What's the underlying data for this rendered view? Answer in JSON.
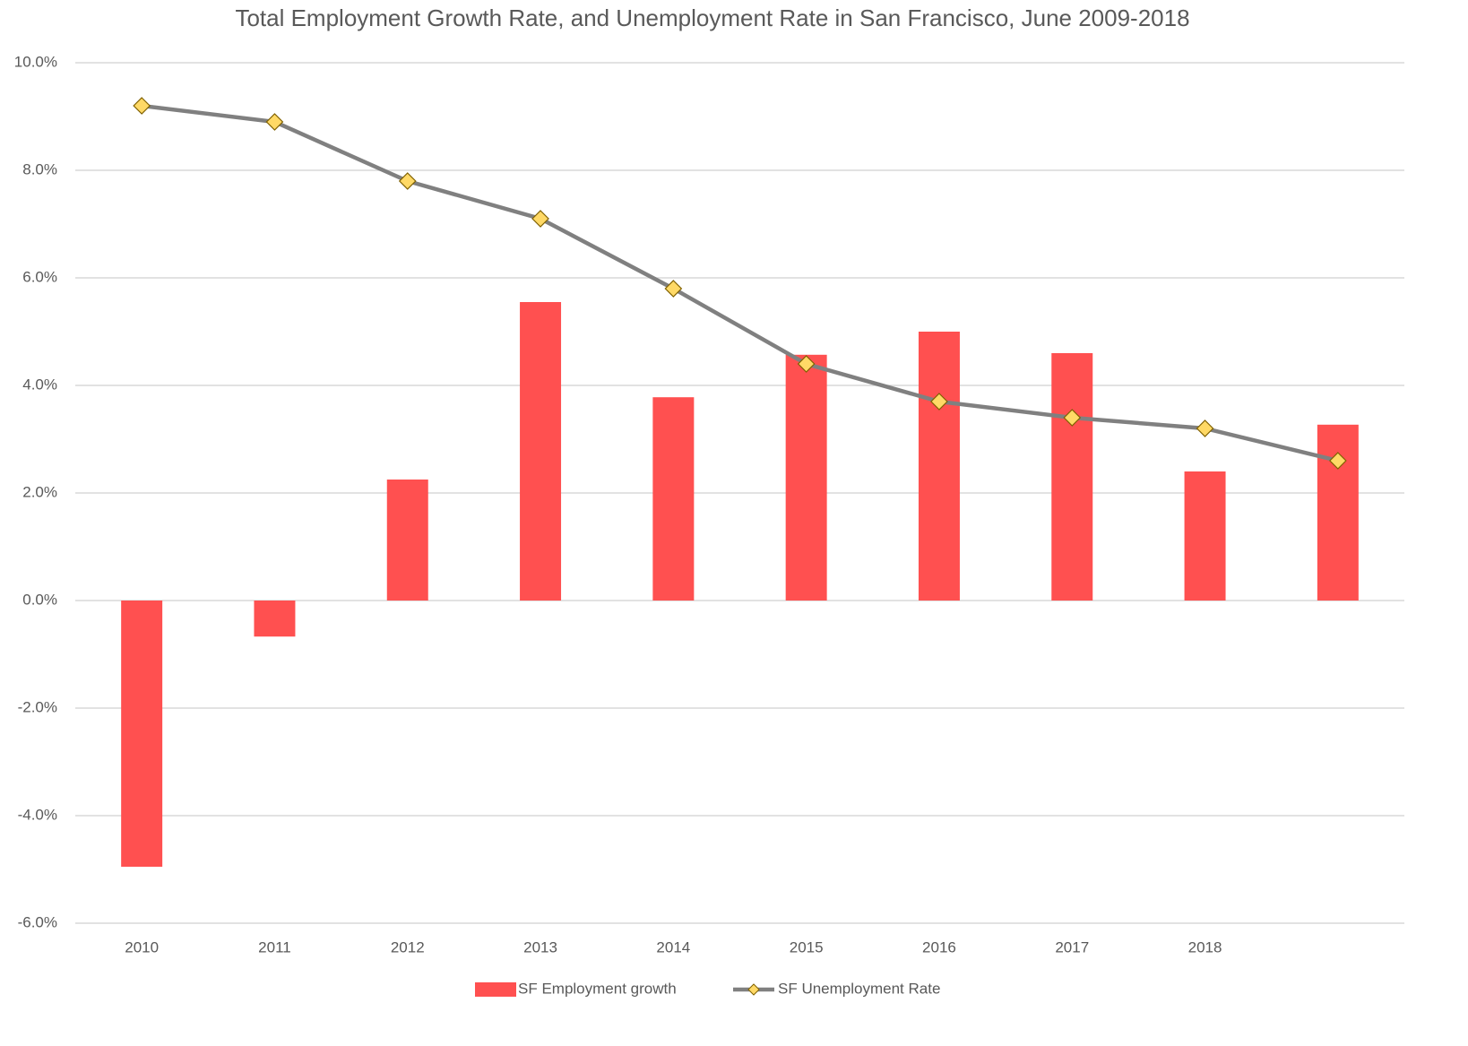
{
  "chart_data": {
    "type": "bar-line",
    "title": "Total Employment  Growth Rate, and Unemployment  Rate in San Francisco, June 2009-2018",
    "categories": [
      "2010",
      "2011",
      "2012",
      "2013",
      "2014",
      "2015",
      "2016",
      "2017",
      "2018",
      null
    ],
    "series": [
      {
        "name": "SF Employment growth",
        "type": "bar",
        "color": "#ff5050",
        "values": [
          -4.95,
          -0.67,
          2.25,
          5.55,
          3.78,
          4.57,
          5.0,
          4.6,
          2.4,
          3.27
        ]
      },
      {
        "name": "SF Unemployment Rate",
        "type": "line",
        "color": "#808080",
        "marker_color": "#ffd966",
        "values": [
          9.2,
          8.9,
          7.8,
          7.1,
          5.8,
          4.4,
          3.7,
          3.4,
          3.2,
          2.6
        ]
      }
    ],
    "ylim": [
      -6,
      10
    ],
    "yticks": [
      {
        "value": -6,
        "label": "-6.0%"
      },
      {
        "value": -4,
        "label": "-4.0%"
      },
      {
        "value": -2,
        "label": "-2.0%"
      },
      {
        "value": 0,
        "label": "0.0%"
      },
      {
        "value": 2,
        "label": "2.0%"
      },
      {
        "value": 4,
        "label": "4.0%"
      },
      {
        "value": 6,
        "label": "6.0%"
      },
      {
        "value": 8,
        "label": "8.0%"
      },
      {
        "value": 10,
        "label": "10.0%"
      }
    ],
    "grid": true,
    "legend": "bottom"
  }
}
